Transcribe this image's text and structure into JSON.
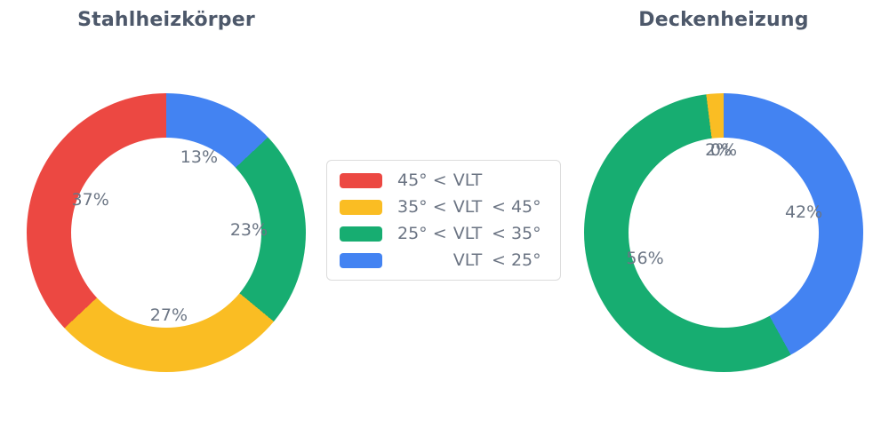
{
  "palette": {
    "red": "#ec4842",
    "yellow": "#fabd23",
    "green": "#17ad71",
    "blue": "#4383f2",
    "title_color": "#4d586a",
    "label_color": "#6b7584",
    "legend_border": "#dcdcdc"
  },
  "chart_data": [
    {
      "type": "pie",
      "subtype": "donut",
      "title": "Stahlheizkörper",
      "hole": 0.68,
      "direction": "clockwise",
      "start_angle_deg": 0,
      "labels": [
        "VLT < 25°",
        "25° < VLT < 35°",
        "35° < VLT < 45°",
        "45° < VLT"
      ],
      "values": [
        13,
        23,
        27,
        37
      ],
      "slice_texts": [
        "13%",
        "23%",
        "27%",
        "37%"
      ],
      "colors": [
        "#4383f2",
        "#17ad71",
        "#fabd23",
        "#ec4842"
      ]
    },
    {
      "type": "pie",
      "subtype": "donut",
      "title": "Deckenheizung",
      "hole": 0.68,
      "direction": "clockwise",
      "start_angle_deg": 0,
      "labels": [
        "VLT < 25°",
        "25° < VLT < 35°",
        "35° < VLT < 45°",
        "45° < VLT"
      ],
      "values": [
        42,
        56,
        2,
        0
      ],
      "slice_texts": [
        "42%",
        "56%",
        "2%",
        "0%"
      ],
      "colors": [
        "#4383f2",
        "#17ad71",
        "#fabd23",
        "#ec4842"
      ]
    }
  ],
  "legend": {
    "items": [
      {
        "color": "#ec4842",
        "label": "45° < VLT",
        "prefix": "45° <",
        "term": "VLT",
        "suffix": ""
      },
      {
        "color": "#fabd23",
        "label": "35° < VLT < 45°",
        "prefix": "35° <",
        "term": "VLT",
        "suffix": "< 45°"
      },
      {
        "color": "#17ad71",
        "label": "25° < VLT < 35°",
        "prefix": "25° <",
        "term": "VLT",
        "suffix": "< 35°"
      },
      {
        "color": "#4383f2",
        "label": "VLT < 25°",
        "prefix": "",
        "term": "VLT",
        "suffix": "< 25°"
      }
    ]
  }
}
